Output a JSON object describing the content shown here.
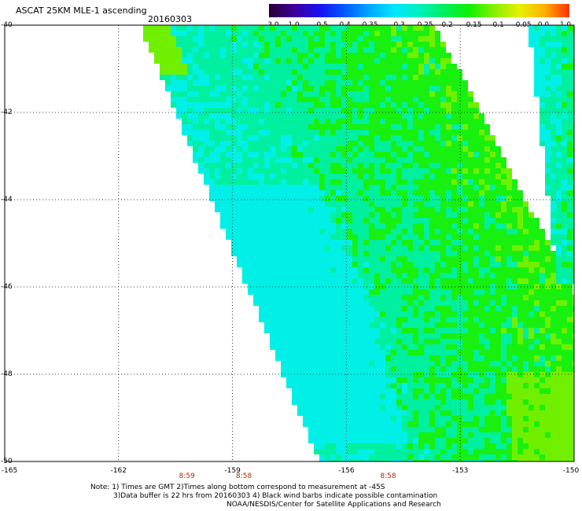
{
  "header": {
    "title": "ASCAT 25KM MLE-1 ascending",
    "date": "20160303"
  },
  "colorbar": {
    "tick_labels": [
      "-3.0",
      "-1.0",
      "-0.5",
      "-0.4",
      "-0.35",
      "-0.3",
      "-0.25",
      "-0.2",
      "-0.15",
      "-0.1",
      "-0.05",
      "0.0",
      "1.0"
    ],
    "colors": [
      "#2a0034",
      "#3c009a",
      "#1a10f0",
      "#0058ff",
      "#00a6ff",
      "#00e6ff",
      "#00f0c0",
      "#00ee60",
      "#10f000",
      "#86f000",
      "#e8f000",
      "#ffb000",
      "#ff3000"
    ]
  },
  "axes": {
    "lat_labels": [
      "-40",
      "-42",
      "-44",
      "-46",
      "-48",
      "-50"
    ],
    "lat_values": [
      -40,
      -42,
      -44,
      -46,
      -48,
      -50
    ],
    "lon_labels": [
      "-165",
      "-162",
      "-159",
      "-156",
      "-153",
      "-150"
    ],
    "lon_values": [
      -165,
      -162,
      -159,
      -156,
      -153,
      -150
    ]
  },
  "time_labels": [
    {
      "text": "8:59",
      "lon": -160.2
    },
    {
      "text": "8:58",
      "lon": -158.7
    },
    {
      "text": "8:58",
      "lon": -154.9
    }
  ],
  "notes": {
    "line1": "Note: 1) Times are GMT 2)Times along bottom correspond to measurement at -45S",
    "line2": "3)Data buffer is 22 hrs from 20160303 4) Black wind barbs indicate possible contamination",
    "line3": "NOAA/NESDIS/Center for Satellite Applications and Research"
  }
}
